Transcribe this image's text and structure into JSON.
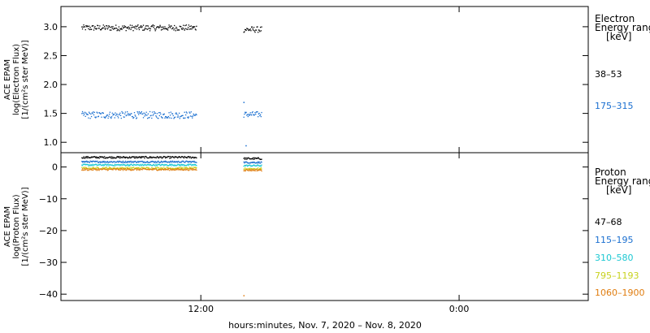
{
  "chart_data": [
    {
      "panel": "electron",
      "type": "scatter",
      "ylabel_lines": [
        "ACE EPAM",
        "log(Electron Flux)",
        "[1/(cm²s ster MeV)]"
      ],
      "ylim": [
        0.82,
        3.35
      ],
      "yticks": [
        1.0,
        1.5,
        2.0,
        2.5,
        3.0
      ],
      "ytick_labels": [
        "1.0",
        "1.5",
        "2.0",
        "2.5",
        "3.0"
      ],
      "legend_title_lines": [
        "Electron",
        "Energy ranges",
        "[keV]"
      ],
      "series": [
        {
          "name": "38–53",
          "color": "#000000",
          "segments": [
            {
              "x_start": -11.1,
              "x_end": -0.45,
              "base": 2.99,
              "spread": 0.05
            },
            {
              "x_start": 3.95,
              "x_end": 5.6,
              "base": 2.96,
              "spread": 0.05
            }
          ]
        },
        {
          "name": "175–315",
          "color": "#1a6fd0",
          "segments": [
            {
              "x_start": -11.1,
              "x_end": -0.45,
              "base": 1.48,
              "spread": 0.06
            },
            {
              "x_start": 3.95,
              "x_end": 5.6,
              "base": 1.49,
              "spread": 0.05
            }
          ]
        }
      ],
      "annotations": [
        {
          "x": 3.95,
          "y": 1.7,
          "series": "175–315"
        },
        {
          "x": 4.15,
          "y": 0.95,
          "series": "175–315"
        }
      ]
    },
    {
      "panel": "proton",
      "type": "scatter",
      "ylabel_lines": [
        "ACE EPAM",
        "log(Proton Flux)",
        "[1/(cm²s ster MeV)]"
      ],
      "ylim": [
        -42,
        4.5
      ],
      "yticks": [
        0,
        -10,
        -20,
        -30,
        -40
      ],
      "ytick_labels": [
        "0",
        "−10",
        "−20",
        "−30",
        "−40"
      ],
      "legend_title_lines": [
        "Proton",
        "Energy ranges",
        "[keV]"
      ],
      "series": [
        {
          "name": "47–68",
          "color": "#000000",
          "segments": [
            {
              "x_start": -11.1,
              "x_end": -0.45,
              "base": 3.2,
              "spread": 0.3
            },
            {
              "x_start": 3.95,
              "x_end": 5.6,
              "base": 2.8,
              "spread": 0.3
            }
          ]
        },
        {
          "name": "115–195",
          "color": "#1a6fd0",
          "segments": [
            {
              "x_start": -11.1,
              "x_end": -0.45,
              "base": 1.8,
              "spread": 0.25
            },
            {
              "x_start": 3.95,
              "x_end": 5.6,
              "base": 1.6,
              "spread": 0.25
            }
          ]
        },
        {
          "name": "310–580",
          "color": "#1cc8d2",
          "segments": [
            {
              "x_start": -11.1,
              "x_end": -0.45,
              "base": 0.8,
              "spread": 0.25
            },
            {
              "x_start": 3.95,
              "x_end": 5.6,
              "base": 0.6,
              "spread": 0.25
            }
          ]
        },
        {
          "name": "795–1193",
          "color": "#c8d21e",
          "segments": [
            {
              "x_start": -11.1,
              "x_end": -0.45,
              "base": -0.2,
              "spread": 0.3
            },
            {
              "x_start": 3.95,
              "x_end": 5.6,
              "base": -0.4,
              "spread": 0.3
            }
          ]
        },
        {
          "name": "1060–1900",
          "color": "#e07d10",
          "segments": [
            {
              "x_start": -11.1,
              "x_end": -0.45,
              "base": -0.6,
              "spread": 0.3
            },
            {
              "x_start": 3.95,
              "x_end": 5.6,
              "base": -0.8,
              "spread": 0.3
            }
          ]
        }
      ],
      "annotations": [
        {
          "x": 3.95,
          "y": -40.3,
          "series": "1060–1900"
        }
      ]
    }
  ],
  "x_axis": {
    "range_hours": [
      -13,
      36
    ],
    "ticks_hours": [
      0,
      24,
      48
    ],
    "tick_labels": [
      "12:00",
      "0:00",
      "12:00"
    ],
    "label": "hours:minutes,  Nov.  7, 2020 – Nov.  8, 2020"
  }
}
